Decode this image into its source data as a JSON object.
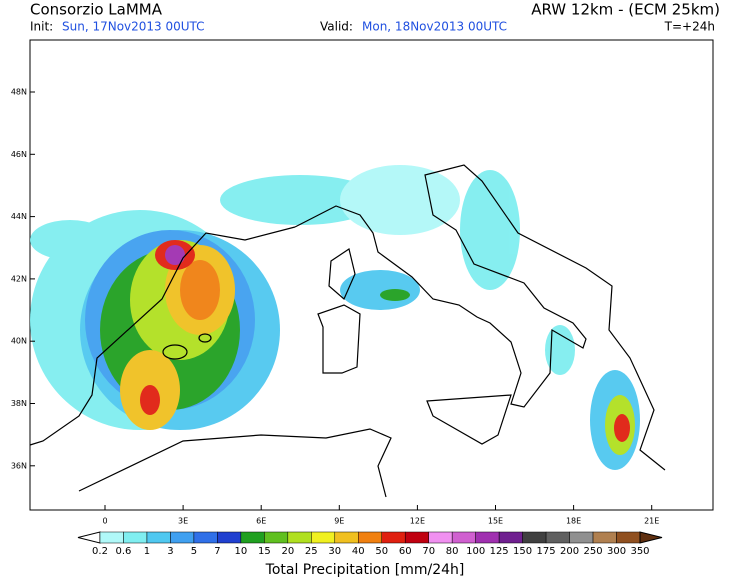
{
  "header": {
    "title": "Consorzio LaMMA",
    "model": "ARW 12km - (ECM 25km)",
    "init_label": "Init:",
    "init": "Sun, 17Nov2013 00UTC",
    "valid_label": "Valid:",
    "valid": "Mon, 18Nov2013 00UTC",
    "lead": "T=+24h"
  },
  "map": {
    "lat_labels": [
      "48N",
      "46N",
      "44N",
      "42N",
      "40N",
      "38N",
      "36N"
    ],
    "lon_labels": [
      "0",
      "3E",
      "6E",
      "9E",
      "12E",
      "15E",
      "18E",
      "21E"
    ]
  },
  "legend": {
    "labels": [
      "0.2",
      "0.6",
      "1",
      "3",
      "5",
      "7",
      "10",
      "15",
      "20",
      "25",
      "30",
      "40",
      "50",
      "60",
      "70",
      "80",
      "100",
      "125",
      "150",
      "175",
      "200",
      "250",
      "300",
      "350"
    ],
    "colors": [
      "#ffffff",
      "#b0f8f8",
      "#80eef0",
      "#50c8f0",
      "#40a0f0",
      "#3070e8",
      "#2040d0",
      "#20a020",
      "#60c020",
      "#b0e020",
      "#f0f020",
      "#f0c020",
      "#f08010",
      "#e02010",
      "#c00010",
      "#f090f0",
      "#d060d0",
      "#a030b0",
      "#702090",
      "#404040",
      "#606060",
      "#909090",
      "#b08050",
      "#905020",
      "#603010"
    ],
    "title": "Total Precipitation [mm/24h]"
  }
}
